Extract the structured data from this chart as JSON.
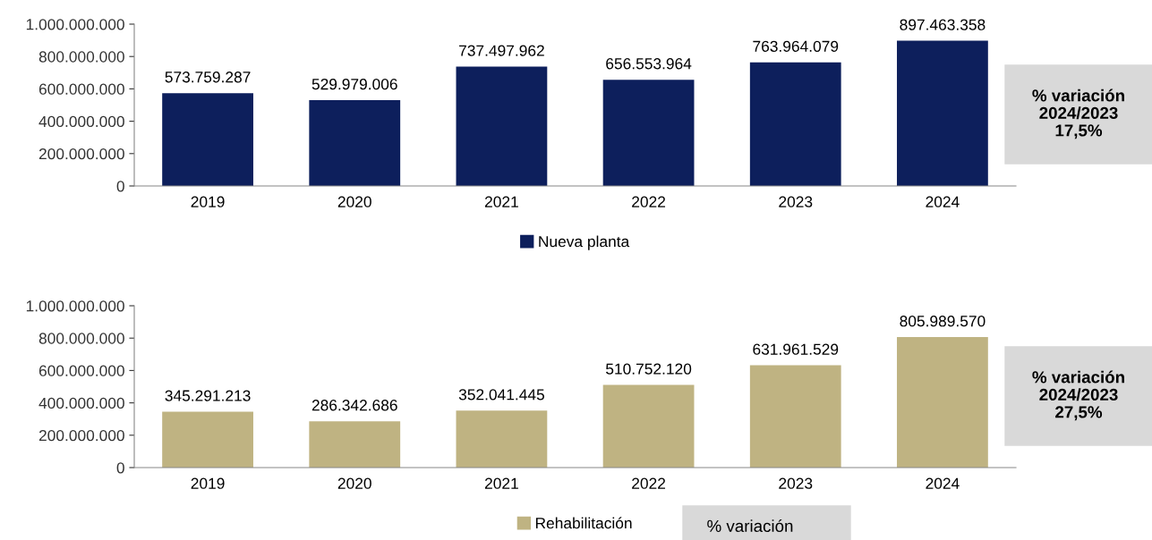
{
  "chart_data": [
    {
      "type": "bar",
      "categories": [
        "2019",
        "2020",
        "2021",
        "2022",
        "2023",
        "2024"
      ],
      "series": [
        {
          "name": "Nueva planta",
          "color": "#0d1f5c",
          "values": [
            573759287,
            529979006,
            737497962,
            656553964,
            763964079,
            897463358
          ],
          "value_labels": [
            "573.759.287",
            "529.979.006",
            "737.497.962",
            "656.553.964",
            "763.964.079",
            "897.463.358"
          ]
        }
      ],
      "ylim": [
        0,
        1000000000
      ],
      "yticks": [
        {
          "value": 0,
          "label": "0"
        },
        {
          "value": 200000000,
          "label": "200.000.000"
        },
        {
          "value": 400000000,
          "label": "400.000.000"
        },
        {
          "value": 600000000,
          "label": "600.000.000"
        },
        {
          "value": 800000000,
          "label": "800.000.000"
        },
        {
          "value": 1000000000,
          "label": "1.000.000.000"
        }
      ],
      "legend": "bottom",
      "grid": false,
      "annotations": [
        "% variación\n2024/2023\n17,5%"
      ]
    },
    {
      "type": "bar",
      "categories": [
        "2019",
        "2020",
        "2021",
        "2022",
        "2023",
        "2024"
      ],
      "series": [
        {
          "name": "Rehabilitación",
          "color": "#bfb382",
          "values": [
            345291213,
            286342686,
            352041445,
            510752120,
            631961529,
            805989570
          ],
          "value_labels": [
            "345.291.213",
            "286.342.686",
            "352.041.445",
            "510.752.120",
            "631.961.529",
            "805.989.570"
          ]
        }
      ],
      "ylim": [
        0,
        1000000000
      ],
      "yticks": [
        {
          "value": 0,
          "label": "0"
        },
        {
          "value": 200000000,
          "label": "200.000.000"
        },
        {
          "value": 400000000,
          "label": "400.000.000"
        },
        {
          "value": 600000000,
          "label": "600.000.000"
        },
        {
          "value": 800000000,
          "label": "800.000.000"
        },
        {
          "value": 1000000000,
          "label": "1.000.000.000"
        }
      ],
      "legend": "bottom",
      "grid": false,
      "annotations": [
        "% variación\n2024/2023\n27,5%",
        "% variación"
      ]
    }
  ]
}
